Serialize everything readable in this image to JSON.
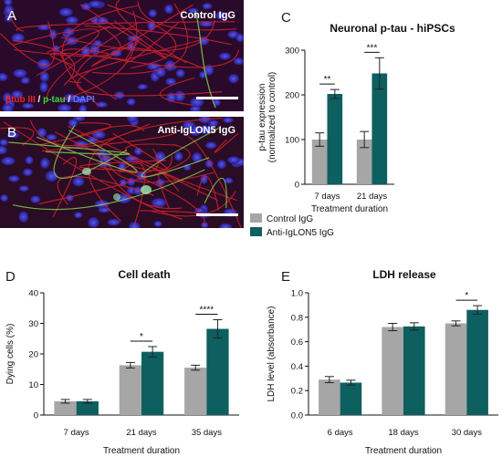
{
  "micrographs": [
    {
      "letter": "A",
      "label": "Control IgG",
      "stain_legend": [
        {
          "text": "βtub III",
          "color": "#e8242a"
        },
        {
          "text": " / ",
          "color": "#ffffff"
        },
        {
          "text": "p-tau",
          "color": "#3cd640"
        },
        {
          "text": " / ",
          "color": "#ffffff"
        },
        {
          "text": "DAPI",
          "color": "#5a78ff"
        }
      ]
    },
    {
      "letter": "B",
      "label": "Anti-IgLON5 IgG"
    }
  ],
  "colors": {
    "control": "#a6a6a6",
    "anti": "#0e5f5f"
  },
  "legend": [
    "Control IgG",
    "Anti-IgLON5 IgG"
  ],
  "chart_data": [
    {
      "panel": "C",
      "type": "bar",
      "title": "Neuronal p-tau - hiPSCs",
      "ylabel": [
        "p-tau expression",
        "(normalized to control)"
      ],
      "xlabel": "Treatment duration",
      "categories": [
        "7 days",
        "21 days"
      ],
      "ylim": [
        0,
        300
      ],
      "yticks": [
        0,
        100,
        200,
        300
      ],
      "series": [
        {
          "name": "Control IgG",
          "values": [
            100,
            100
          ],
          "errors": [
            15,
            18
          ]
        },
        {
          "name": "Anti-IgLON5 IgG",
          "values": [
            202,
            248
          ],
          "errors": [
            10,
            35
          ]
        }
      ],
      "significance": [
        "**",
        "***"
      ]
    },
    {
      "panel": "D",
      "type": "bar",
      "title": "Cell death",
      "ylabel": [
        "Dying cells (%)"
      ],
      "xlabel": "Treatment duration",
      "categories": [
        "7 days",
        "21 days",
        "35 days"
      ],
      "ylim": [
        0,
        40
      ],
      "yticks": [
        0,
        10,
        20,
        30,
        40
      ],
      "series": [
        {
          "name": "Control IgG",
          "values": [
            4.5,
            16.3,
            15.5
          ],
          "errors": [
            0.6,
            0.9,
            0.8
          ]
        },
        {
          "name": "Anti-IgLON5 IgG",
          "values": [
            4.5,
            20.7,
            28.2
          ],
          "errors": [
            0.6,
            1.7,
            3.0
          ]
        }
      ],
      "significance": [
        "",
        "*",
        "****"
      ]
    },
    {
      "panel": "E",
      "type": "bar",
      "title": "LDH release",
      "ylabel": [
        "LDH level (absorbance)"
      ],
      "xlabel": "Treatment duration",
      "categories": [
        "6 days",
        "18 days",
        "30 days"
      ],
      "ylim": [
        0,
        1.0
      ],
      "yticks": [
        "0.0",
        "0.2",
        "0.4",
        "0.6",
        "0.8",
        "1.0"
      ],
      "series": [
        {
          "name": "Control IgG",
          "values": [
            0.29,
            0.72,
            0.75
          ],
          "errors": [
            0.025,
            0.03,
            0.02
          ]
        },
        {
          "name": "Anti-IgLON5 IgG",
          "values": [
            0.265,
            0.725,
            0.86
          ],
          "errors": [
            0.02,
            0.03,
            0.035
          ]
        }
      ],
      "significance": [
        "",
        "",
        "*"
      ]
    }
  ]
}
